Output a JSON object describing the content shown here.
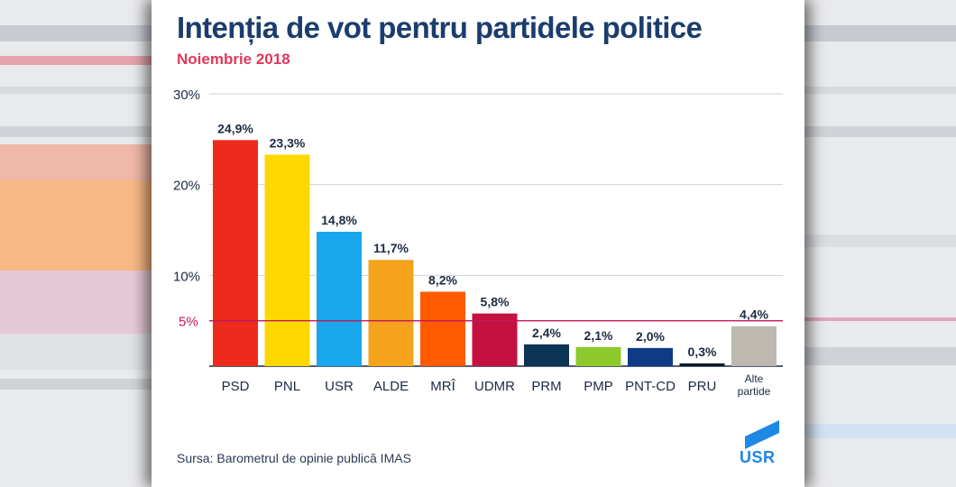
{
  "title": "Intenția de vot pentru partidele politice",
  "subtitle": "Noiembrie 2018",
  "source": "Sursa: Barometrul de opinie publică IMAS",
  "logo_text": "USR",
  "chart_data": {
    "type": "bar",
    "categories": [
      "PSD",
      "PNL",
      "USR",
      "ALDE",
      "MRÎ",
      "UDMR",
      "PRM",
      "PMP",
      "PNT-CD",
      "PRU",
      "Alte partide"
    ],
    "values": [
      24.9,
      23.3,
      14.8,
      11.7,
      8.2,
      5.8,
      2.4,
      2.1,
      2.0,
      0.3,
      4.4
    ],
    "value_labels": [
      "24,9%",
      "23,3%",
      "14,8%",
      "11,7%",
      "8,2%",
      "5,8%",
      "2,4%",
      "2,1%",
      "2,0%",
      "0,3%",
      "4,4%"
    ],
    "colors": [
      "#ee2a1c",
      "#ffd800",
      "#1aa7ee",
      "#f5a31c",
      "#ff5a00",
      "#c4113f",
      "#0c3454",
      "#8dc92a",
      "#0e3a86",
      "#0b1a2a",
      "#bdb9b1"
    ],
    "ylim": [
      0,
      30
    ],
    "yticks": [
      10,
      20,
      30
    ],
    "ytick_labels": [
      "10%",
      "20%",
      "30%"
    ],
    "reference_line": {
      "value": 5,
      "label": "5%",
      "color": "#c2185b"
    },
    "grid": true
  },
  "colors": {
    "title": "#1b3d6d",
    "subtitle": "#e2375c",
    "logo": "#1e88e5"
  }
}
